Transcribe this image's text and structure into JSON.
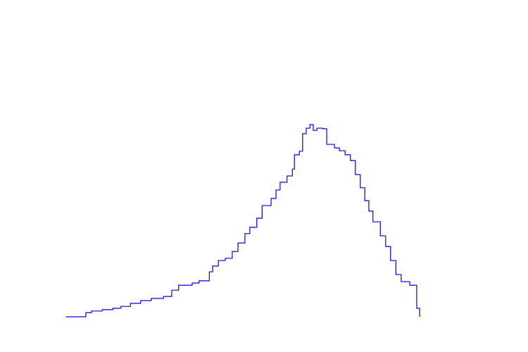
{
  "chart_data": {
    "type": "line",
    "drawstyle": "steps",
    "xlim": [
      0,
      100
    ],
    "ylim": [
      0,
      100
    ],
    "x": [
      0,
      4.8,
      6.2,
      8.8,
      11.4,
      13.4,
      15.7,
      18.2,
      20.8,
      23.8,
      25.8,
      27.5,
      29.4,
      30.8,
      32.5,
      35,
      35.8,
      37.2,
      38.9,
      40.6,
      42,
      43.7,
      44.9,
      46.6,
      47.9,
      50.1,
      51.3,
      52.3,
      54,
      55.3,
      55.8,
      57,
      57.8,
      58.7,
      59.6,
      60.4,
      61.3,
      62.7,
      63.7,
      65.6,
      66.8,
      68.2,
      69.5,
      70.7,
      71.9,
      73,
      74,
      75,
      76.8,
      78.1,
      79.3,
      80.6,
      81.9,
      84,
      85.7,
      86.4
    ],
    "series": [
      {
        "color": "#0000ff",
        "values": [
          0,
          1.5,
          2.1,
          2.6,
          3.1,
          3.8,
          4.9,
          5.9,
          6.7,
          7.4,
          9.7,
          11.5,
          11.5,
          12.3,
          13.1,
          16.4,
          18.5,
          20.5,
          21.3,
          23.8,
          26.9,
          30.3,
          32.6,
          35.9,
          40.5,
          43.1,
          46.2,
          49,
          51.3,
          53.8,
          59,
          60.3,
          66.7,
          68.7,
          70,
          67.9,
          68.7,
          68.5,
          62.8,
          61.5,
          60.5,
          59,
          56.9,
          51.8,
          47,
          42.3,
          38.5,
          34.6,
          29.5,
          25.6,
          20.5,
          15.4,
          12.8,
          11.5,
          3.1,
          0
        ]
      }
    ]
  }
}
